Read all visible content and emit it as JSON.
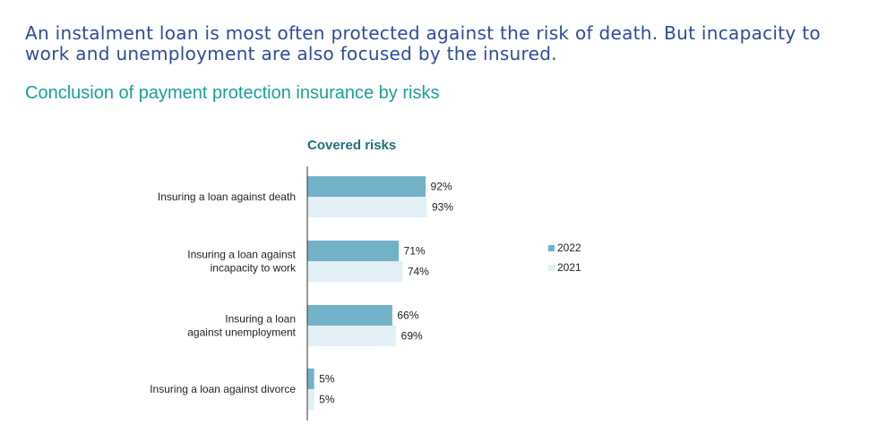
{
  "header": {
    "headline": "An instalment loan is most often protected against the risk of death. But incapacity to work and unemployment are also focused by the insured.",
    "subtitle": "Conclusion of payment protection insurance by risks"
  },
  "chart_data": {
    "type": "bar",
    "orientation": "horizontal",
    "title": "Covered risks",
    "xlabel": "",
    "ylabel": "",
    "xlim": [
      0,
      100
    ],
    "unit": "%",
    "grid": false,
    "legend_position": "right",
    "categories": [
      "Insuring a loan against death",
      "Insuring a loan against\nincapacity to work",
      "Insuring a loan\nagainst unemployment",
      "Insuring a loan against divorce"
    ],
    "series": [
      {
        "name": "2022",
        "color": "#72b2c9",
        "values": [
          92,
          71,
          66,
          5
        ],
        "labels": [
          "92%",
          "71%",
          "66%",
          "5%"
        ]
      },
      {
        "name": "2021",
        "color": "#e1f0f6",
        "values": [
          93,
          74,
          69,
          5
        ],
        "labels": [
          "93%",
          "74%",
          "69%",
          "5%"
        ]
      }
    ]
  }
}
